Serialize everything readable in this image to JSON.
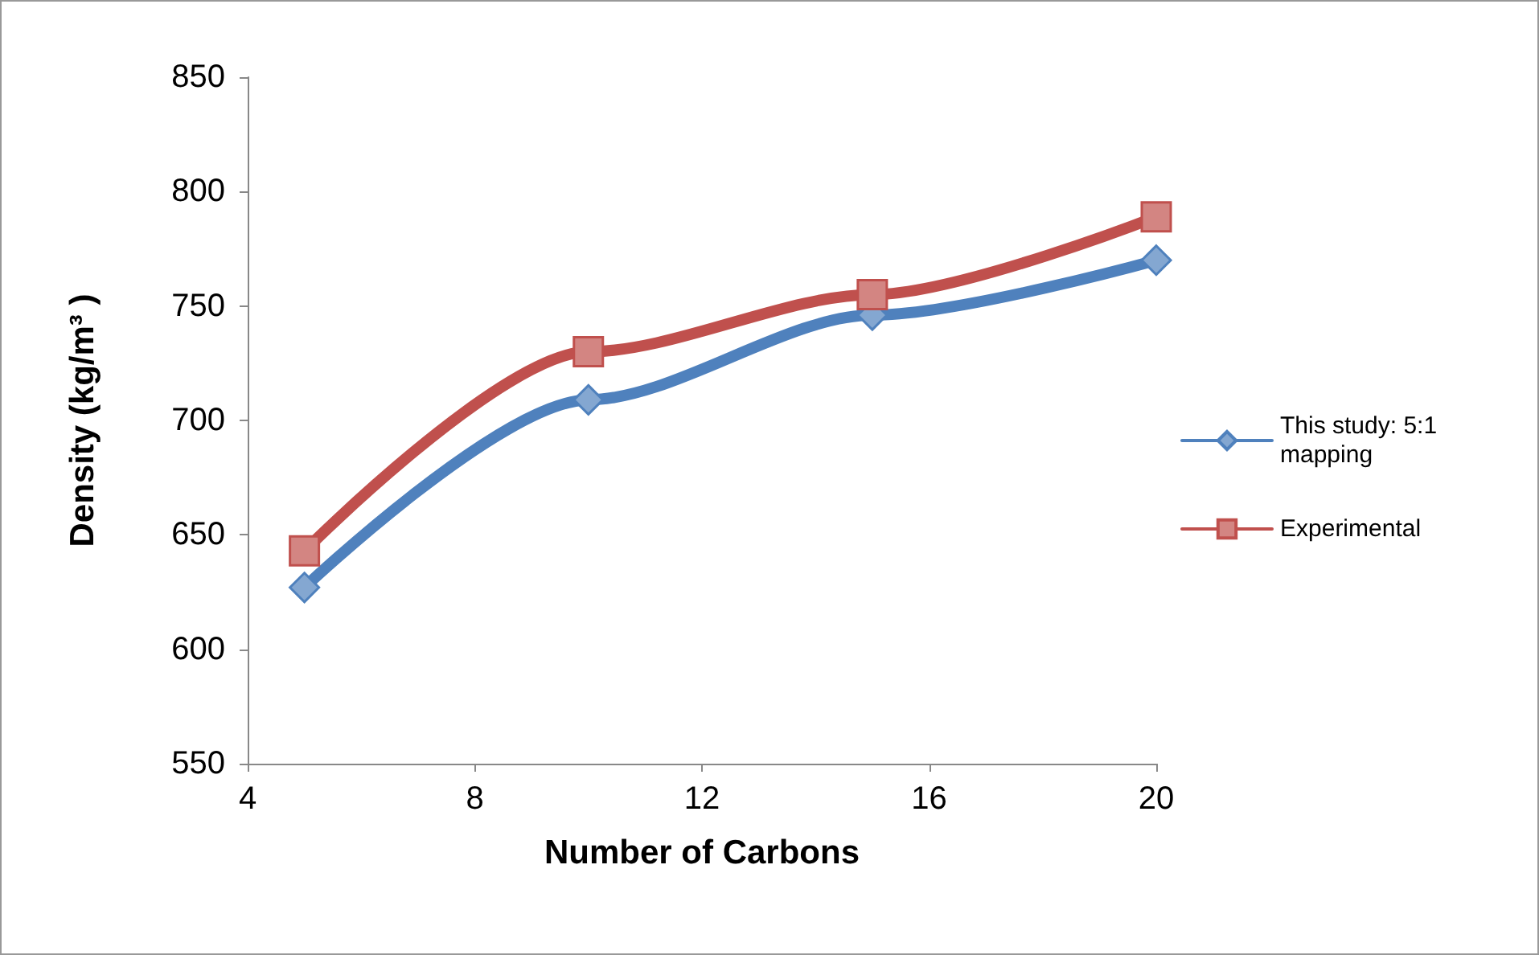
{
  "chart_data": {
    "type": "line",
    "xlabel": "Number of Carbons",
    "ylabel": "Density (kg/m³ )",
    "x": [
      5,
      10,
      15,
      20
    ],
    "series": [
      {
        "name": "This study: 5:1 mapping",
        "color": "#4f81bd",
        "marker": "diamond",
        "values": [
          627,
          709,
          746,
          770
        ]
      },
      {
        "name": "Experimental",
        "color": "#c0504d",
        "marker": "square",
        "values": [
          643,
          730,
          755,
          789
        ]
      }
    ],
    "xlim": [
      4,
      20
    ],
    "xticks": [
      4,
      8,
      12,
      16,
      20
    ],
    "ylim": [
      550,
      850
    ],
    "yticks": [
      550,
      600,
      650,
      700,
      750,
      800,
      850
    ],
    "grid": false,
    "legend": "right",
    "line_style": "solid"
  }
}
